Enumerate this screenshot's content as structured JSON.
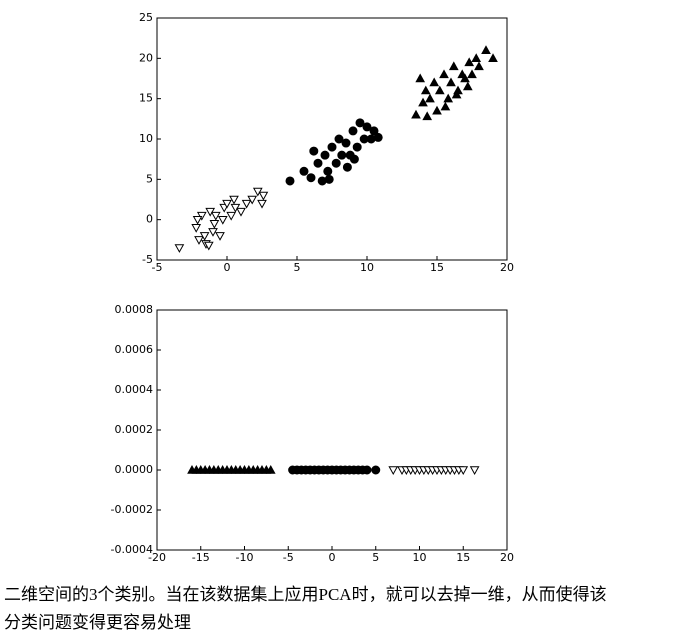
{
  "chart_data": [
    {
      "type": "scatter",
      "xlim": [
        -5,
        20
      ],
      "xticks": [
        -5,
        0,
        5,
        10,
        15,
        20
      ],
      "ylim": [
        -5,
        25
      ],
      "yticks": [
        -5,
        0,
        5,
        10,
        15,
        20,
        25
      ],
      "series": [
        {
          "marker": "v",
          "color": "#000000",
          "facecolor": "#ffffff",
          "x": [
            -3.4,
            -2.2,
            -2,
            -1.8,
            -1.5,
            -1.2,
            -1,
            -0.8,
            -0.5,
            -0.2,
            0,
            0.3,
            0.6,
            1,
            1.4,
            1.8,
            2.2,
            2.5,
            2.6,
            -1.6,
            -0.9,
            -0.3,
            0.5,
            -2.1,
            -1.3
          ],
          "values": [
            -3.5,
            -1,
            -2.5,
            0.5,
            -3,
            1,
            -1.5,
            0.5,
            -2,
            1.5,
            2,
            0.5,
            1.5,
            1,
            2,
            2.5,
            3.5,
            2,
            3,
            -2,
            -0.5,
            0,
            2.5,
            0,
            -3.2
          ]
        },
        {
          "marker": "o",
          "color": "#000000",
          "facecolor": "#000000",
          "x": [
            4.5,
            5.5,
            6,
            6.5,
            6.8,
            7,
            7.2,
            7.5,
            7.8,
            8,
            8.2,
            8.5,
            8.8,
            9,
            9.3,
            9.5,
            9.8,
            10,
            10.3,
            10.5,
            7.3,
            8.6,
            6.2,
            9.1,
            10.8
          ],
          "values": [
            4.8,
            6,
            5.2,
            7,
            4.8,
            8,
            6,
            9,
            7,
            10,
            8,
            9.5,
            8,
            11,
            9,
            12,
            10,
            11.5,
            10,
            11,
            5,
            6.5,
            8.5,
            7.5,
            10.2
          ]
        },
        {
          "marker": "^",
          "color": "#000000",
          "facecolor": "#000000",
          "x": [
            13.5,
            14,
            14.2,
            14.5,
            14.8,
            15,
            15.2,
            15.5,
            15.8,
            16,
            16.2,
            16.5,
            16.8,
            17,
            17.3,
            17.5,
            17.8,
            18,
            18.5,
            19,
            14.3,
            15.6,
            16.4,
            17.2,
            13.8
          ],
          "values": [
            13,
            14.5,
            16,
            15,
            17,
            13.5,
            16,
            18,
            15,
            17,
            19,
            16,
            18,
            17.5,
            19.5,
            18,
            20,
            19,
            21,
            20,
            12.8,
            14,
            15.5,
            16.5,
            17.5
          ]
        }
      ]
    },
    {
      "type": "scatter",
      "xlim": [
        -20,
        20
      ],
      "xticks": [
        -20,
        -15,
        -10,
        -5,
        0,
        5,
        10,
        15,
        20
      ],
      "ylim": [
        -0.0004,
        0.0008
      ],
      "yticks": [
        -0.0004,
        -0.0002,
        {
          "value": 0,
          "label": "0.0000"
        },
        0.0002,
        0.0004,
        0.0006,
        0.0008
      ],
      "series": [
        {
          "marker": "^",
          "color": "#000000",
          "facecolor": "#000000",
          "x": [
            -16,
            -15.5,
            -15,
            -14.5,
            -14,
            -13.5,
            -13,
            -12.5,
            -12,
            -11.5,
            -11,
            -10.5,
            -10,
            -9.5,
            -9,
            -8.5,
            -8,
            -7.5,
            -7
          ],
          "values": [
            0,
            0,
            0,
            0,
            0,
            0,
            0,
            0,
            0,
            0,
            0,
            0,
            0,
            0,
            0,
            0,
            0,
            0,
            0
          ]
        },
        {
          "marker": "o",
          "color": "#000000",
          "facecolor": "#000000",
          "x": [
            -4.5,
            -4,
            -3.5,
            -3,
            -2.5,
            -2,
            -1.5,
            -1,
            -0.5,
            0,
            0.5,
            1,
            1.5,
            2,
            2.5,
            3,
            3.5,
            4,
            5
          ],
          "values": [
            0,
            0,
            0,
            0,
            0,
            0,
            0,
            0,
            0,
            0,
            0,
            0,
            0,
            0,
            0,
            0,
            0,
            0,
            0
          ]
        },
        {
          "marker": "v",
          "color": "#000000",
          "facecolor": "#ffffff",
          "x": [
            7,
            8,
            8.5,
            9,
            9.5,
            10,
            10.5,
            11,
            11.5,
            12,
            12.5,
            13,
            13.5,
            14,
            14.5,
            15,
            16.3
          ],
          "values": [
            0,
            0,
            0,
            0,
            0,
            0,
            0,
            0,
            0,
            0,
            0,
            0,
            0,
            0,
            0,
            0,
            0
          ]
        }
      ]
    }
  ],
  "caption": [
    "二维空间的3个类别。当在该数据集上应用PCA时，就可以去掉一维，从而使得该",
    "分类问题变得更容易处理"
  ]
}
